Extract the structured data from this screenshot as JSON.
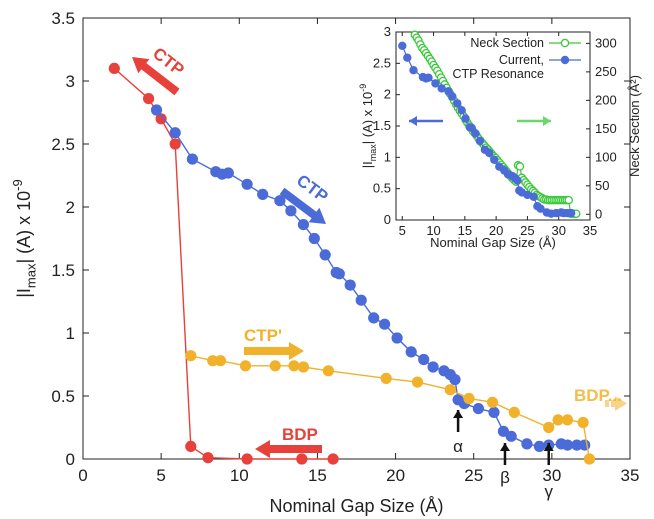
{
  "chart_data": [
    {
      "type": "scatter",
      "xlabel": "Nominal Gap Size (Å)",
      "ylabel": "|I_max| (A) x 10^-9",
      "xlim": [
        0,
        35
      ],
      "ylim": [
        0,
        3.5
      ],
      "xticks": [
        "0",
        "5",
        "10",
        "15",
        "20",
        "25",
        "30",
        "35"
      ],
      "yticks": [
        "0",
        "0.5",
        "1",
        "1.5",
        "2",
        "2.5",
        "3",
        "3.5"
      ],
      "grid": false,
      "series": [
        {
          "color": "#e8403a",
          "points": [
            [
              2.0,
              3.1
            ],
            [
              4.2,
              2.86
            ],
            [
              5.0,
              2.7
            ],
            [
              5.9,
              2.5
            ],
            [
              6.9,
              0.1
            ],
            [
              8.0,
              0.01
            ],
            [
              10.5,
              0.0
            ],
            [
              14.0,
              0.0
            ],
            [
              16.0,
              0.0
            ]
          ]
        },
        {
          "color": "#4a6bd8",
          "points": [
            [
              4.7,
              2.77
            ],
            [
              5.9,
              2.59
            ],
            [
              7.0,
              2.38
            ],
            [
              8.5,
              2.28
            ],
            [
              8.9,
              2.26
            ],
            [
              9.3,
              2.27
            ],
            [
              10.5,
              2.18
            ],
            [
              11.5,
              2.1
            ],
            [
              12.6,
              2.05
            ],
            [
              13.3,
              1.97
            ],
            [
              14.1,
              1.86
            ],
            [
              14.8,
              1.75
            ],
            [
              15.5,
              1.62
            ],
            [
              16.2,
              1.48
            ],
            [
              16.4,
              1.47
            ],
            [
              17.1,
              1.38
            ],
            [
              17.8,
              1.26
            ],
            [
              18.6,
              1.12
            ],
            [
              19.3,
              1.07
            ],
            [
              20.1,
              0.96
            ],
            [
              21.0,
              0.85
            ],
            [
              21.8,
              0.79
            ],
            [
              22.4,
              0.73
            ],
            [
              23.1,
              0.7
            ],
            [
              23.5,
              0.67
            ],
            [
              23.8,
              0.63
            ],
            [
              24.0,
              0.47
            ],
            [
              24.4,
              0.44
            ],
            [
              25.3,
              0.4
            ],
            [
              26.3,
              0.37
            ],
            [
              26.9,
              0.22
            ],
            [
              27.4,
              0.18
            ],
            [
              28.4,
              0.12
            ],
            [
              29.2,
              0.1
            ],
            [
              29.8,
              0.11
            ],
            [
              30.6,
              0.12
            ],
            [
              31.0,
              0.11
            ],
            [
              31.6,
              0.11
            ],
            [
              32.1,
              0.11
            ]
          ]
        },
        {
          "color": "#f2b12a",
          "points": [
            [
              6.9,
              0.82
            ],
            [
              8.3,
              0.78
            ],
            [
              8.8,
              0.78
            ],
            [
              10.4,
              0.74
            ],
            [
              12.3,
              0.74
            ],
            [
              13.5,
              0.74
            ],
            [
              14.1,
              0.73
            ],
            [
              15.7,
              0.7
            ],
            [
              19.4,
              0.64
            ],
            [
              21.4,
              0.61
            ],
            [
              23.5,
              0.55
            ],
            [
              24.7,
              0.48
            ],
            [
              26.2,
              0.45
            ],
            [
              27.6,
              0.37
            ],
            [
              29.8,
              0.25
            ],
            [
              30.4,
              0.31
            ],
            [
              31.0,
              0.31
            ],
            [
              32.0,
              0.29
            ],
            [
              32.4,
              0.0
            ]
          ]
        }
      ],
      "annotations": [
        {
          "text": "CTP",
          "color": "#e8403a"
        },
        {
          "text": "CTP",
          "color": "#4a6bd8"
        },
        {
          "text": "CTP'",
          "color": "#f2b12a"
        },
        {
          "text": "BDP",
          "color": "#e8403a"
        },
        {
          "text": "BDP...",
          "color": "#f2b12a"
        },
        {
          "text": "α",
          "x": 24.0
        },
        {
          "text": "β",
          "x": 27.0
        },
        {
          "text": "γ",
          "x": 29.8
        }
      ]
    },
    {
      "type": "scatter",
      "xlabel": "Nominal Gap Size (Å)",
      "ylabel": "|I_max| (A) x 10^-9",
      "y2label": "Neck Section (Å²)",
      "xlim": [
        4,
        35
      ],
      "ylim": [
        0,
        3
      ],
      "y2lim": [
        -10,
        320
      ],
      "xticks": [
        "5",
        "10",
        "15",
        "20",
        "25",
        "30",
        "35"
      ],
      "yticks": [
        "0",
        "0.5",
        "1",
        "1.5",
        "2",
        "2.5",
        "3"
      ],
      "y2ticks": [
        "0",
        "50",
        "100",
        "150",
        "200",
        "250",
        "300"
      ],
      "legend": "top-right",
      "series": [
        {
          "name": "Neck Section",
          "color": "#3cc83c",
          "marker": "open-circle",
          "axis": "right",
          "points": [
            [
              7.0,
              315
            ],
            [
              7.3,
              310
            ],
            [
              7.6,
              305
            ],
            [
              7.9,
              298
            ],
            [
              8.2,
              292
            ],
            [
              8.5,
              288
            ],
            [
              8.8,
              283
            ],
            [
              9.1,
              278
            ],
            [
              9.4,
              273
            ],
            [
              9.7,
              268
            ],
            [
              10.0,
              262
            ],
            [
              10.3,
              257
            ],
            [
              10.6,
              252
            ],
            [
              10.9,
              246
            ],
            [
              11.2,
              240
            ],
            [
              11.5,
              234
            ],
            [
              11.8,
              228
            ],
            [
              12.1,
              222
            ],
            [
              12.4,
              216
            ],
            [
              12.7,
              211
            ],
            [
              13.0,
              205
            ],
            [
              13.3,
              199
            ],
            [
              13.6,
              193
            ],
            [
              13.9,
              187
            ],
            [
              14.2,
              182
            ],
            [
              14.5,
              177
            ],
            [
              14.8,
              172
            ],
            [
              15.1,
              166
            ],
            [
              15.4,
              161
            ],
            [
              15.7,
              156
            ],
            [
              16.0,
              151
            ],
            [
              16.3,
              146
            ],
            [
              16.6,
              142
            ],
            [
              16.9,
              138
            ],
            [
              17.2,
              133
            ],
            [
              17.5,
              129
            ],
            [
              17.8,
              125
            ],
            [
              18.1,
              121
            ],
            [
              18.4,
              117
            ],
            [
              18.7,
              114
            ],
            [
              19.0,
              110
            ],
            [
              19.3,
              106
            ],
            [
              19.6,
              102
            ],
            [
              19.9,
              99
            ],
            [
              20.2,
              95
            ],
            [
              20.5,
              91
            ],
            [
              20.8,
              87
            ],
            [
              21.1,
              83
            ],
            [
              21.4,
              79
            ],
            [
              21.7,
              75
            ],
            [
              22.0,
              71
            ],
            [
              22.3,
              67
            ],
            [
              22.6,
              63
            ],
            [
              22.9,
              60
            ],
            [
              23.2,
              57
            ],
            [
              23.5,
              86
            ],
            [
              23.8,
              84
            ],
            [
              24.1,
              64
            ],
            [
              24.4,
              60
            ],
            [
              24.7,
              56
            ],
            [
              25.0,
              52
            ],
            [
              25.3,
              48
            ],
            [
              25.6,
              44
            ],
            [
              25.9,
              41
            ],
            [
              26.2,
              38
            ],
            [
              26.5,
              34
            ],
            [
              26.8,
              32
            ],
            [
              27.1,
              30
            ],
            [
              27.4,
              28
            ],
            [
              27.7,
              26
            ],
            [
              28.0,
              26
            ],
            [
              28.3,
              25
            ],
            [
              28.6,
              25
            ],
            [
              28.9,
              25
            ],
            [
              29.2,
              25
            ],
            [
              29.5,
              25
            ],
            [
              29.8,
              25
            ],
            [
              30.1,
              25
            ],
            [
              30.4,
              25
            ],
            [
              30.7,
              25
            ],
            [
              31.0,
              25
            ],
            [
              31.3,
              25
            ],
            [
              31.6,
              25
            ],
            [
              31.9,
              1
            ],
            [
              32.2,
              1
            ],
            [
              32.5,
              1
            ],
            [
              32.8,
              1
            ]
          ]
        },
        {
          "name": "Current,\nCTP Resonance",
          "color": "#4a6bd8",
          "marker": "filled-circle",
          "axis": "left",
          "points": [
            [
              5.0,
              2.78
            ],
            [
              5.8,
              2.59
            ],
            [
              6.8,
              2.39
            ],
            [
              8.3,
              2.28
            ],
            [
              8.8,
              2.26
            ],
            [
              9.2,
              2.27
            ],
            [
              10.3,
              2.18
            ],
            [
              11.3,
              2.1
            ],
            [
              12.4,
              2.05
            ],
            [
              13.0,
              1.97
            ],
            [
              13.8,
              1.86
            ],
            [
              14.5,
              1.75
            ],
            [
              15.1,
              1.62
            ],
            [
              15.8,
              1.48
            ],
            [
              16.1,
              1.47
            ],
            [
              16.7,
              1.38
            ],
            [
              17.4,
              1.26
            ],
            [
              18.2,
              1.12
            ],
            [
              18.9,
              1.07
            ],
            [
              19.7,
              0.96
            ],
            [
              20.5,
              0.85
            ],
            [
              21.3,
              0.79
            ],
            [
              21.9,
              0.73
            ],
            [
              22.6,
              0.7
            ],
            [
              23.0,
              0.67
            ],
            [
              23.4,
              0.63
            ],
            [
              23.7,
              0.47
            ],
            [
              24.1,
              0.44
            ],
            [
              25.0,
              0.4
            ],
            [
              26.0,
              0.37
            ],
            [
              26.6,
              0.22
            ],
            [
              27.1,
              0.18
            ],
            [
              28.1,
              0.12
            ],
            [
              28.8,
              0.1
            ],
            [
              29.6,
              0.11
            ],
            [
              30.4,
              0.12
            ],
            [
              30.8,
              0.11
            ],
            [
              31.4,
              0.11
            ],
            [
              32.0,
              0.11
            ]
          ]
        }
      ]
    }
  ]
}
